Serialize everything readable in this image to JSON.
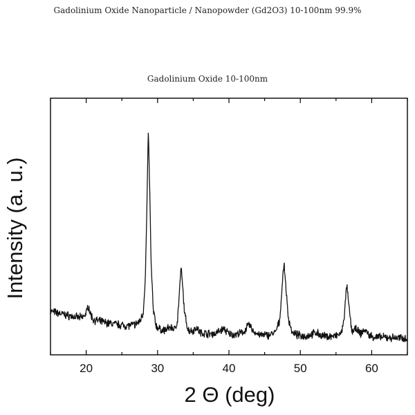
{
  "page": {
    "title": "Gadolinium Oxide Nanoparticle / Nanopowder (Gd2O3) 10-100nm  99.9%"
  },
  "chart_data": {
    "type": "line",
    "title": "Gadolinium Oxide 10-100nm",
    "xlabel": "2 Θ (deg)",
    "ylabel": "Intensity (a. u.)",
    "xlim": [
      15,
      65
    ],
    "ylim": [
      0,
      100
    ],
    "x_ticks": [
      20,
      30,
      40,
      50,
      60
    ],
    "y_ticks": [],
    "grid": false,
    "legend": "none",
    "background": 6,
    "peaks": [
      {
        "x": 20.3,
        "height": 5,
        "width": 0.32
      },
      {
        "x": 28.7,
        "height": 76,
        "width": 0.3
      },
      {
        "x": 31.8,
        "height": 2,
        "width": 0.35
      },
      {
        "x": 33.3,
        "height": 25,
        "width": 0.3
      },
      {
        "x": 35.4,
        "height": 2.5,
        "width": 0.3
      },
      {
        "x": 39.3,
        "height": 2.5,
        "width": 0.3
      },
      {
        "x": 42.8,
        "height": 4,
        "width": 0.32
      },
      {
        "x": 47.7,
        "height": 27,
        "width": 0.32
      },
      {
        "x": 52.3,
        "height": 1.5,
        "width": 0.4
      },
      {
        "x": 56.5,
        "height": 20,
        "width": 0.3
      },
      {
        "x": 57.9,
        "height": 3,
        "width": 0.35
      },
      {
        "x": 59.0,
        "height": 3,
        "width": 0.35
      }
    ],
    "series": [
      {
        "x": [
          15,
          15.5,
          16,
          16.5,
          17,
          17.5,
          18,
          18.5,
          19,
          19.5,
          20,
          20.3,
          20.6,
          21,
          21.5,
          22,
          22.5,
          23,
          23.5,
          24,
          24.5,
          25,
          25.5,
          26,
          26.5,
          27,
          27.5,
          28,
          28.3,
          28.5,
          28.7,
          28.9,
          29.1,
          29.4,
          29.8,
          30.3,
          31,
          31.8,
          32.4,
          32.8,
          33.1,
          33.3,
          33.5,
          33.8,
          34.3,
          35,
          35.4,
          36,
          37,
          38,
          39.3,
          40,
          41,
          42,
          42.8,
          43.5,
          44.5,
          45.5,
          46.5,
          47.1,
          47.5,
          47.7,
          47.9,
          48.3,
          48.9,
          50,
          51,
          52.3,
          53,
          54,
          55,
          55.8,
          56.2,
          56.5,
          56.8,
          57.2,
          57.9,
          58.4,
          59,
          59.7,
          60.5,
          61.5,
          62.5,
          63.5,
          64.5,
          65
        ],
        "y": [
          17,
          16.6,
          16.3,
          16,
          15.6,
          15.3,
          15,
          14.7,
          14.5,
          14.6,
          16.2,
          19.3,
          15.9,
          13.7,
          13.3,
          13,
          12.7,
          12.4,
          12.2,
          12,
          11.8,
          11.6,
          11.4,
          11.4,
          11.6,
          12,
          13,
          16.6,
          31.1,
          56.1,
          87.6,
          64.6,
          35.3,
          17.3,
          11.3,
          9.9,
          9.5,
          10.8,
          9.9,
          13.5,
          26.1,
          33.9,
          27,
          15.7,
          9.6,
          9.4,
          10.7,
          8.6,
          8.3,
          8.2,
          10.2,
          8.1,
          7.9,
          8.7,
          11.7,
          8.9,
          7.6,
          7.7,
          8.6,
          13.1,
          28.6,
          35.5,
          29.6,
          14.5,
          8.4,
          7.4,
          7.4,
          8.7,
          7.3,
          7.2,
          7.3,
          8.5,
          16.2,
          27.3,
          19,
          9.4,
          10,
          8.1,
          9.8,
          7.5,
          6.9,
          6.8,
          6.7,
          6.6,
          6.5,
          6.5
        ]
      }
    ]
  }
}
